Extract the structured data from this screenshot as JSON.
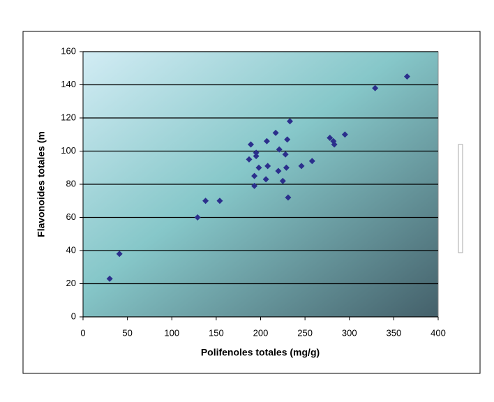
{
  "chart_data": {
    "type": "scatter",
    "xlabel": "Polifenoles totales (mg/g)",
    "ylabel": "Flavonoides totales (m",
    "x": [
      30,
      41,
      129,
      138,
      154,
      187,
      189,
      193,
      193,
      195,
      195,
      198,
      206,
      207,
      208,
      217,
      220,
      221,
      225,
      228,
      229,
      230,
      231,
      233,
      246,
      258,
      278,
      282,
      283,
      295,
      329,
      365
    ],
    "values": [
      23,
      38,
      60,
      70,
      70,
      95,
      104,
      79,
      85,
      97,
      99,
      90,
      83,
      106,
      91,
      111,
      88,
      101,
      82,
      98,
      90,
      107,
      72,
      118,
      91,
      94,
      108,
      106,
      104,
      110,
      138,
      145
    ],
    "color": "#2b2f8c",
    "xlim": [
      0,
      400
    ],
    "xticks": [
      0,
      50,
      100,
      150,
      200,
      250,
      300,
      350,
      400
    ],
    "ylim": [
      0,
      160
    ],
    "yticks": [
      0,
      20,
      40,
      60,
      80,
      100,
      120,
      140,
      160
    ],
    "grid": true
  }
}
